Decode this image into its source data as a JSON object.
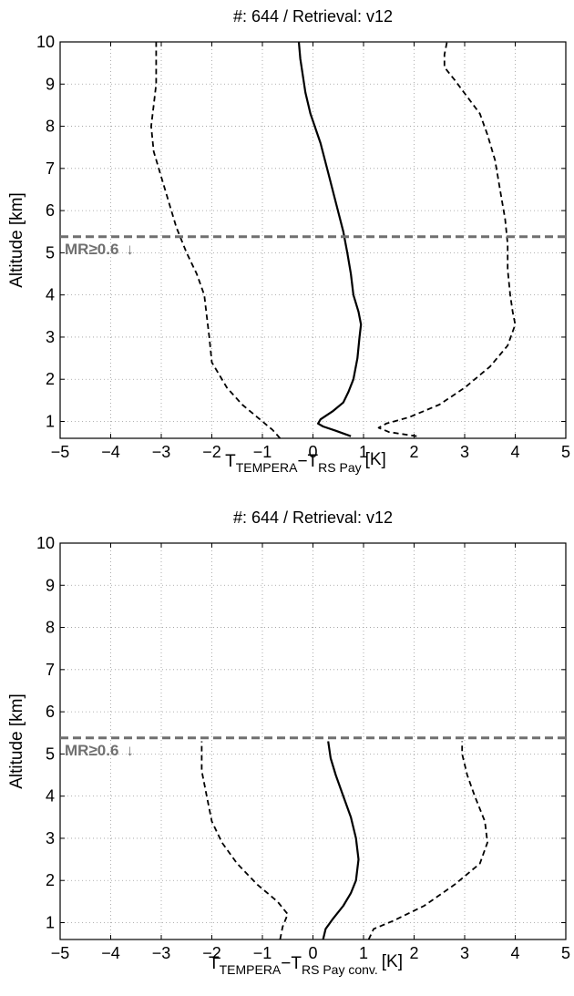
{
  "chart_data": [
    {
      "type": "line",
      "title": "#: 644 / Retrieval: v12",
      "ylabel": "Altitude [km]",
      "xlabel": {
        "main": "T",
        "sub1": "TEMPERA",
        "sep": "−T",
        "sub2": "RS Pay",
        "unit": "[K]"
      },
      "xlim": [
        -5,
        5
      ],
      "ylim": [
        0.6,
        10
      ],
      "xticks": [
        "−5",
        "−4",
        "−3",
        "−2",
        "−1",
        "0",
        "1",
        "2",
        "3",
        "4",
        "5"
      ],
      "yticks": [
        "1",
        "2",
        "3",
        "4",
        "5",
        "6",
        "7",
        "8",
        "9",
        "10"
      ],
      "grid": true,
      "threshold": {
        "y": 5.38,
        "label": "MR≥0.6",
        "arrow": "↓",
        "color": "#707070"
      },
      "series": [
        {
          "style": "solid",
          "points": [
            [
              0.75,
              0.65
            ],
            [
              0.45,
              0.78
            ],
            [
              0.2,
              0.88
            ],
            [
              0.1,
              0.95
            ],
            [
              0.15,
              1.05
            ],
            [
              0.4,
              1.25
            ],
            [
              0.6,
              1.45
            ],
            [
              0.7,
              1.7
            ],
            [
              0.8,
              2.0
            ],
            [
              0.88,
              2.5
            ],
            [
              0.92,
              3.0
            ],
            [
              0.95,
              3.3
            ],
            [
              0.9,
              3.6
            ],
            [
              0.8,
              4.0
            ],
            [
              0.75,
              4.5
            ],
            [
              0.68,
              5.0
            ],
            [
              0.6,
              5.5
            ],
            [
              0.45,
              6.2
            ],
            [
              0.3,
              6.9
            ],
            [
              0.15,
              7.6
            ],
            [
              -0.05,
              8.3
            ],
            [
              -0.15,
              8.8
            ],
            [
              -0.2,
              9.2
            ],
            [
              -0.25,
              9.6
            ],
            [
              -0.28,
              10.0
            ]
          ]
        },
        {
          "style": "dashed",
          "points": [
            [
              -0.65,
              0.6
            ],
            [
              -0.8,
              0.8
            ],
            [
              -1.1,
              1.1
            ],
            [
              -1.4,
              1.4
            ],
            [
              -1.7,
              1.8
            ],
            [
              -1.9,
              2.2
            ],
            [
              -2.0,
              2.4
            ],
            [
              -2.05,
              3.0
            ],
            [
              -2.1,
              3.5
            ],
            [
              -2.15,
              4.0
            ],
            [
              -2.3,
              4.5
            ],
            [
              -2.5,
              5.0
            ],
            [
              -2.7,
              5.6
            ],
            [
              -2.85,
              6.2
            ],
            [
              -3.0,
              6.8
            ],
            [
              -3.15,
              7.4
            ],
            [
              -3.2,
              8.0
            ],
            [
              -3.15,
              8.5
            ],
            [
              -3.1,
              9.0
            ],
            [
              -3.1,
              9.5
            ],
            [
              -3.1,
              10.0
            ]
          ]
        },
        {
          "style": "dashed",
          "points": [
            [
              2.05,
              0.65
            ],
            [
              1.5,
              0.75
            ],
            [
              1.3,
              0.85
            ],
            [
              1.45,
              0.95
            ],
            [
              1.9,
              1.1
            ],
            [
              2.5,
              1.4
            ],
            [
              3.0,
              1.8
            ],
            [
              3.5,
              2.3
            ],
            [
              3.85,
              2.8
            ],
            [
              4.0,
              3.3
            ],
            [
              3.95,
              3.6
            ],
            [
              3.9,
              4.0
            ],
            [
              3.85,
              4.6
            ],
            [
              3.85,
              5.2
            ],
            [
              3.8,
              5.8
            ],
            [
              3.7,
              6.5
            ],
            [
              3.6,
              7.2
            ],
            [
              3.45,
              7.8
            ],
            [
              3.3,
              8.3
            ],
            [
              3.05,
              8.7
            ],
            [
              2.8,
              9.1
            ],
            [
              2.6,
              9.4
            ],
            [
              2.6,
              9.7
            ],
            [
              2.65,
              10.0
            ]
          ]
        }
      ]
    },
    {
      "type": "line",
      "title": "#: 644 / Retrieval: v12",
      "ylabel": "Altitude [km]",
      "xlabel": {
        "main": "T",
        "sub1": "TEMPERA",
        "sep": "−T",
        "sub2": "RS Pay conv.",
        "unit": "[K]"
      },
      "xlim": [
        -5,
        5
      ],
      "ylim": [
        0.6,
        10
      ],
      "xticks": [
        "−5",
        "−4",
        "−3",
        "−2",
        "−1",
        "0",
        "1",
        "2",
        "3",
        "4",
        "5"
      ],
      "yticks": [
        "1",
        "2",
        "3",
        "4",
        "5",
        "6",
        "7",
        "8",
        "9",
        "10"
      ],
      "grid": true,
      "threshold": {
        "y": 5.38,
        "label": "MR≥0.6",
        "arrow": "↓",
        "color": "#707070"
      },
      "series": [
        {
          "style": "solid",
          "points": [
            [
              0.2,
              0.6
            ],
            [
              0.25,
              0.85
            ],
            [
              0.4,
              1.1
            ],
            [
              0.6,
              1.4
            ],
            [
              0.75,
              1.7
            ],
            [
              0.85,
              2.0
            ],
            [
              0.9,
              2.5
            ],
            [
              0.85,
              3.0
            ],
            [
              0.75,
              3.5
            ],
            [
              0.6,
              4.0
            ],
            [
              0.45,
              4.5
            ],
            [
              0.35,
              4.9
            ],
            [
              0.3,
              5.3
            ]
          ]
        },
        {
          "style": "dashed",
          "points": [
            [
              -0.65,
              0.6
            ],
            [
              -0.6,
              0.9
            ],
            [
              -0.5,
              1.2
            ],
            [
              -0.7,
              1.5
            ],
            [
              -1.1,
              1.9
            ],
            [
              -1.5,
              2.4
            ],
            [
              -1.8,
              2.9
            ],
            [
              -2.0,
              3.4
            ],
            [
              -2.1,
              4.0
            ],
            [
              -2.2,
              4.6
            ],
            [
              -2.2,
              5.0
            ],
            [
              -2.2,
              5.3
            ]
          ]
        },
        {
          "style": "dashed",
          "points": [
            [
              1.1,
              0.6
            ],
            [
              1.2,
              0.85
            ],
            [
              1.6,
              1.05
            ],
            [
              2.2,
              1.4
            ],
            [
              2.8,
              1.9
            ],
            [
              3.3,
              2.4
            ],
            [
              3.45,
              2.9
            ],
            [
              3.4,
              3.4
            ],
            [
              3.2,
              4.0
            ],
            [
              3.05,
              4.5
            ],
            [
              2.95,
              5.0
            ],
            [
              2.95,
              5.3
            ]
          ]
        }
      ]
    }
  ]
}
